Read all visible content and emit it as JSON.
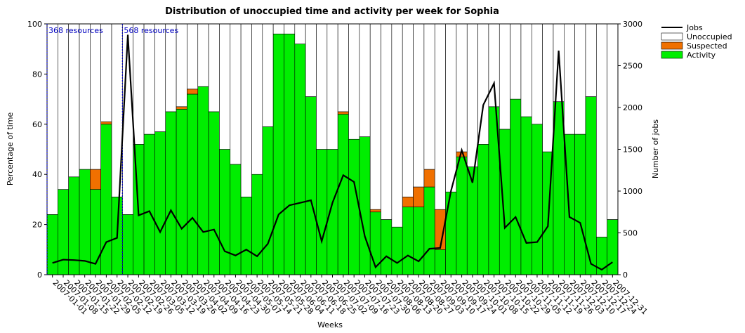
{
  "chart_data": {
    "type": "bar",
    "title": "Distribution of unoccupied time and activity per week for Sophia",
    "x_label": "Weeks",
    "y_label": "Percentage of time",
    "y2_label": "Number of jobs",
    "stacked": true,
    "categories": [
      "2007-01-01",
      "2007-01-08",
      "2007-01-15",
      "2007-01-22",
      "2007-01-29",
      "2007-02-05",
      "2007-02-12",
      "2007-02-19",
      "2007-02-26",
      "2007-03-05",
      "2007-03-12",
      "2007-03-19",
      "2007-03-26",
      "2007-04-02",
      "2007-04-09",
      "2007-04-16",
      "2007-04-23",
      "2007-04-30",
      "2007-05-07",
      "2007-05-14",
      "2007-05-21",
      "2007-05-28",
      "2007-06-04",
      "2007-06-11",
      "2007-06-18",
      "2007-06-25",
      "2007-07-02",
      "2007-07-09",
      "2007-07-16",
      "2007-07-23",
      "2007-07-30",
      "2007-08-06",
      "2007-08-13",
      "2007-08-20",
      "2007-08-27",
      "2007-09-03",
      "2007-09-10",
      "2007-09-17",
      "2007-09-24",
      "2007-10-01",
      "2007-10-08",
      "2007-10-15",
      "2007-10-22",
      "2007-10-29",
      "2007-11-05",
      "2007-11-12",
      "2007-11-19",
      "2007-11-26",
      "2007-12-03",
      "2007-12-10",
      "2007-12-17",
      "2007-12-24",
      "2007-12-31"
    ],
    "series": [
      {
        "name": "Jobs",
        "type": "line",
        "axis": "y2",
        "color": "#000000",
        "values": [
          140,
          180,
          175,
          165,
          130,
          390,
          440,
          2870,
          710,
          760,
          510,
          770,
          550,
          680,
          510,
          540,
          280,
          230,
          300,
          220,
          370,
          720,
          830,
          860,
          890,
          400,
          860,
          1190,
          1110,
          460,
          90,
          220,
          140,
          230,
          160,
          310,
          320,
          1000,
          1490,
          1100,
          2030,
          2290,
          560,
          690,
          380,
          390,
          580,
          2680,
          690,
          620,
          130,
          60,
          150
        ]
      },
      {
        "name": "Unoccupied",
        "color": "#ffffff",
        "values": [
          76,
          66,
          61,
          58,
          58,
          39,
          69,
          76,
          48,
          44,
          43,
          35,
          33,
          26,
          25,
          35,
          50,
          56,
          69,
          60,
          41,
          4,
          4,
          8,
          29,
          50,
          50,
          35,
          46,
          45,
          74,
          78,
          81,
          69,
          65,
          58,
          74,
          67,
          51,
          57,
          48,
          33,
          42,
          30,
          37,
          40,
          51,
          31,
          44,
          44,
          29,
          85,
          78
        ]
      },
      {
        "name": "Suspected",
        "color": "#f07000",
        "values": [
          0,
          0,
          0,
          0,
          8,
          1,
          0,
          0,
          0,
          0,
          0,
          0,
          1,
          2,
          0,
          0,
          0,
          0,
          0,
          0,
          0,
          0,
          0,
          0,
          0,
          0,
          0,
          1,
          0,
          0,
          1,
          0,
          0,
          4,
          8,
          7,
          16,
          0,
          2,
          0,
          0,
          0,
          0,
          0,
          0,
          0,
          0,
          0,
          0,
          0,
          0,
          0,
          0
        ]
      },
      {
        "name": "Activity",
        "color": "#00ee00",
        "values": [
          24,
          34,
          39,
          42,
          34,
          60,
          31,
          24,
          52,
          56,
          57,
          65,
          66,
          72,
          75,
          65,
          50,
          44,
          31,
          40,
          59,
          96,
          96,
          92,
          71,
          50,
          50,
          64,
          54,
          55,
          25,
          22,
          19,
          27,
          27,
          35,
          10,
          33,
          47,
          43,
          52,
          67,
          58,
          70,
          63,
          60,
          49,
          69,
          56,
          56,
          71,
          15,
          22
        ]
      }
    ],
    "annotations": [
      {
        "text": "368 resources",
        "category": "2007-01-01"
      },
      {
        "text": "568 resources",
        "category": "2007-02-19"
      }
    ],
    "ylim": [
      0,
      100
    ],
    "yticks": [
      0,
      20,
      40,
      60,
      80,
      100
    ],
    "y2lim": [
      0,
      3000
    ],
    "y2ticks": [
      0,
      500,
      1000,
      1500,
      2000,
      2500,
      3000
    ],
    "legend": "outside-top-right"
  }
}
